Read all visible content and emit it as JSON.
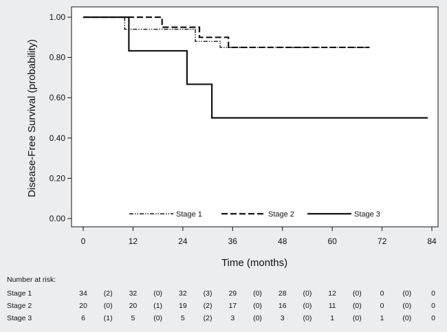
{
  "chart_data": {
    "type": "line",
    "title": "",
    "xlabel": "Time (months)",
    "ylabel": "Disease-Free Survival (probability)",
    "xlim": [
      0,
      84
    ],
    "ylim": [
      0,
      1
    ],
    "x_ticks": [
      "0",
      "12",
      "24",
      "36",
      "48",
      "60",
      "72",
      "84"
    ],
    "y_ticks": [
      "0.00",
      "0.20",
      "0.40",
      "0.60",
      "0.80",
      "1.00"
    ],
    "legend_position": "bottom",
    "series": [
      {
        "name": "Stage 1",
        "style": "dash-dot-dot",
        "x": [
          0,
          10,
          19,
          27,
          33,
          69
        ],
        "y": [
          1.0,
          0.94,
          0.94,
          0.88,
          0.85,
          0.85
        ]
      },
      {
        "name": "Stage 2",
        "style": "dashed",
        "x": [
          0,
          19,
          28,
          35,
          69
        ],
        "y": [
          1.0,
          0.95,
          0.9,
          0.85,
          0.85
        ]
      },
      {
        "name": "Stage 3",
        "style": "solid",
        "x": [
          0,
          11,
          25,
          31,
          83
        ],
        "y": [
          1.0,
          0.833,
          0.667,
          0.5,
          0.5
        ]
      }
    ]
  },
  "risk_table": {
    "header": "Number at risk:",
    "rows": [
      {
        "label": "Stage 1",
        "values": [
          "34",
          "(2)",
          "32",
          "(0)",
          "32",
          "(3)",
          "29",
          "(0)",
          "28",
          "(0)",
          "12",
          "(0)",
          "0",
          "(0)",
          "0"
        ]
      },
      {
        "label": "Stage 2",
        "values": [
          "20",
          "(0)",
          "20",
          "(1)",
          "19",
          "(2)",
          "17",
          "(0)",
          "16",
          "(0)",
          "11",
          "(0)",
          "0",
          "(0)",
          "0"
        ]
      },
      {
        "label": "Stage 3",
        "values": [
          "6",
          "(1)",
          "5",
          "(0)",
          "5",
          "(2)",
          "3",
          "(0)",
          "3",
          "(0)",
          "1",
          "(0)",
          "1",
          "(0)",
          "0"
        ]
      }
    ]
  }
}
